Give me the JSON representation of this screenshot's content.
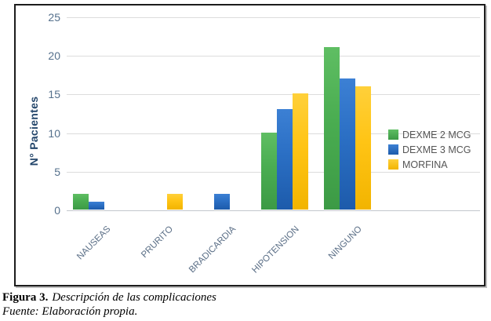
{
  "chart_data": {
    "type": "bar",
    "title": "",
    "xlabel": "",
    "ylabel": "N° Pacientes",
    "ylim": [
      0,
      25
    ],
    "yticks": [
      0,
      5,
      10,
      15,
      20,
      25
    ],
    "grid": true,
    "legend_position": "right",
    "categories": [
      "NAUSEAS",
      "PRURITO",
      "BRADICARDIA",
      "HIPOTENSION",
      "NINGUNO"
    ],
    "series": [
      {
        "name": "DEXME 2 MCG",
        "color": "#4AAD51",
        "color_light": "#5fbe63",
        "color_dark": "#3c9a45",
        "values": [
          2,
          0,
          0,
          10,
          21
        ]
      },
      {
        "name": "DEXME 3 MCG",
        "color": "#2B6FC4",
        "color_light": "#3c80d4",
        "color_dark": "#1d5bab",
        "values": [
          1,
          0,
          2,
          13,
          17
        ]
      },
      {
        "name": "MORFINA",
        "color": "#FFC415",
        "color_light": "#ffd03a",
        "color_dark": "#f2b400",
        "values": [
          0,
          2,
          0,
          15,
          16
        ]
      }
    ]
  },
  "caption": {
    "label": "Figura 3.",
    "title": "Descripción de las complicaciones",
    "source": "Fuente: Elaboración propia."
  },
  "colors": {
    "axis_tick_text": "#55708c",
    "y_title_text": "#24466b",
    "category_text": "#5a6e86",
    "legend_text": "#555555",
    "gridline": "#dcdcdc",
    "zero_line": "#c3c7cc",
    "figure_border": "#1c1c1c",
    "background": "#ffffff"
  }
}
